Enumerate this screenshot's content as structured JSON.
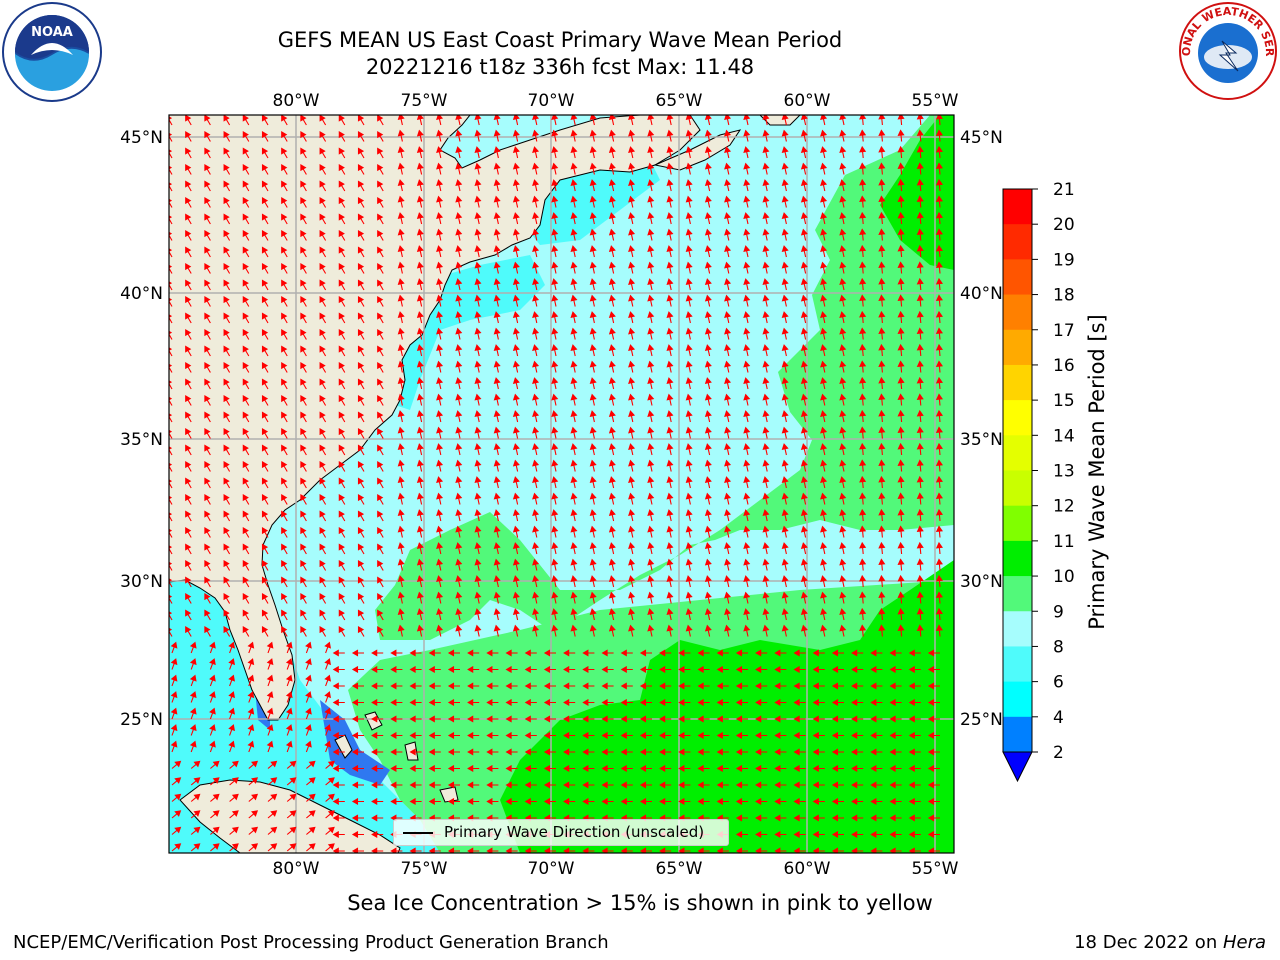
{
  "header": {
    "title_line1": "GEFS MEAN US East Coast Primary Wave Mean Period",
    "title_line2": "20221216 t18z 336h fcst   Max: 11.48"
  },
  "logos": {
    "left": {
      "icon": "noaa-logo-icon",
      "text": "NOAA"
    },
    "right": {
      "icon": "nws-logo-icon",
      "text": "NATIONAL WEATHER SERVICE"
    }
  },
  "map": {
    "lon_labels": [
      "80°W",
      "75°W",
      "70°W",
      "65°W",
      "60°W",
      "55°W"
    ],
    "lat_labels": [
      "45°N",
      "40°N",
      "35°N",
      "30°N",
      "25°N"
    ],
    "legend_label": "Primary Wave Direction (unscaled)",
    "colors": {
      "land": "#efecdb",
      "ocean_cyan": "#4ffbfb",
      "ocean_pale": "#a6fdfd",
      "ocean_green": "#52f97a",
      "ocean_bright_green": "#00ef00",
      "arrow": "#ff0000",
      "grid": "#b0b0b0"
    }
  },
  "colorbar": {
    "title": "Primary Wave Mean Period [s]",
    "ticks": [
      "21",
      "20",
      "19",
      "18",
      "17",
      "16",
      "15",
      "14",
      "13",
      "12",
      "11",
      "10",
      "9",
      "8",
      "6",
      "4",
      "2"
    ],
    "colors": [
      "#ff0000",
      "#ff2a00",
      "#ff5500",
      "#ff8000",
      "#ffaa00",
      "#ffd400",
      "#ffff00",
      "#e4ff00",
      "#c9ff00",
      "#80ff00",
      "#00ee00",
      "#52f97a",
      "#a6fdfd",
      "#4ffbfb",
      "#00ffff",
      "#0080ff",
      "#0000ff"
    ]
  },
  "caption": "Sea Ice Concentration > 15% is shown in pink to yellow",
  "footer": {
    "left": "NCEP/EMC/Verification Post Processing Product Generation Branch",
    "right_date": "18 Dec 2022 on ",
    "right_host": "Hera"
  }
}
